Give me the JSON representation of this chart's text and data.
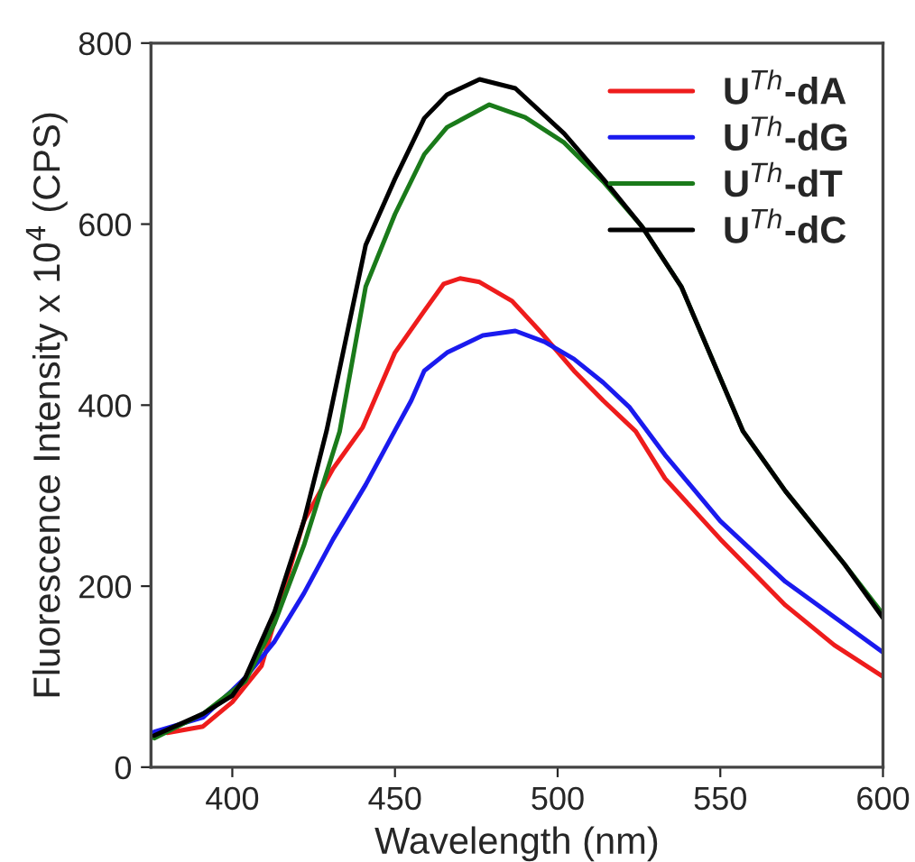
{
  "chart_data": {
    "type": "line",
    "xlabel": "Wavelength (nm)",
    "ylabel": "Fluorescence Intensity x 10$^{4}$ (CPS)",
    "xlim": [
      375,
      600
    ],
    "xticks": [
      400,
      450,
      500,
      550,
      600
    ],
    "ylim": [
      0,
      800
    ],
    "yticks": [
      0,
      200,
      400,
      600,
      800
    ],
    "grid": false,
    "legend": "top right",
    "marker": "none",
    "line_style": "solid",
    "series": [
      {
        "name": "U$^{Th}$-dA",
        "color": "#ee1c1c",
        "x": [
          380,
          391,
          400,
          409,
          422,
          431,
          440,
          450,
          459,
          465,
          470,
          476,
          486,
          495,
          505,
          514,
          524,
          533,
          550,
          570,
          585,
          600
        ],
        "values": [
          38,
          45,
          72,
          112,
          272,
          330,
          375,
          458,
          504,
          534,
          540,
          536,
          515,
          480,
          438,
          405,
          371,
          319,
          252,
          179,
          135,
          100
        ]
      },
      {
        "name": "U$^{Th}$-dG",
        "color": "#1a1aee",
        "x": [
          376,
          391,
          400,
          404,
          413,
          422,
          431,
          441,
          450,
          455,
          459,
          466,
          477,
          487,
          496,
          505,
          514,
          522,
          533,
          550,
          570,
          600
        ],
        "values": [
          39,
          55,
          85,
          99,
          139,
          192,
          252,
          312,
          372,
          405,
          438,
          458,
          477,
          482,
          470,
          451,
          425,
          398,
          345,
          272,
          205,
          127
        ]
      },
      {
        "name": "U$^{Th}$-dT",
        "color": "#1a7a1a",
        "x": [
          376,
          391,
          404,
          413,
          422,
          433,
          441,
          450,
          459,
          466,
          479,
          490,
          502,
          514,
          526,
          538,
          557,
          570,
          588,
          600
        ],
        "values": [
          32,
          59,
          95,
          159,
          245,
          371,
          531,
          611,
          677,
          707,
          732,
          718,
          690,
          647,
          597,
          531,
          371,
          305,
          225,
          169
        ]
      },
      {
        "name": "U$^{Th}$-dC",
        "color": "#000000",
        "x": [
          376,
          391,
          400,
          404,
          413,
          422,
          429,
          441,
          450,
          459,
          466,
          476,
          487,
          502,
          514,
          526,
          538,
          557,
          570,
          588,
          600
        ],
        "values": [
          35,
          59,
          79,
          99,
          172,
          272,
          372,
          577,
          650,
          717,
          743,
          760,
          750,
          700,
          650,
          597,
          531,
          371,
          305,
          225,
          165
        ]
      }
    ]
  }
}
